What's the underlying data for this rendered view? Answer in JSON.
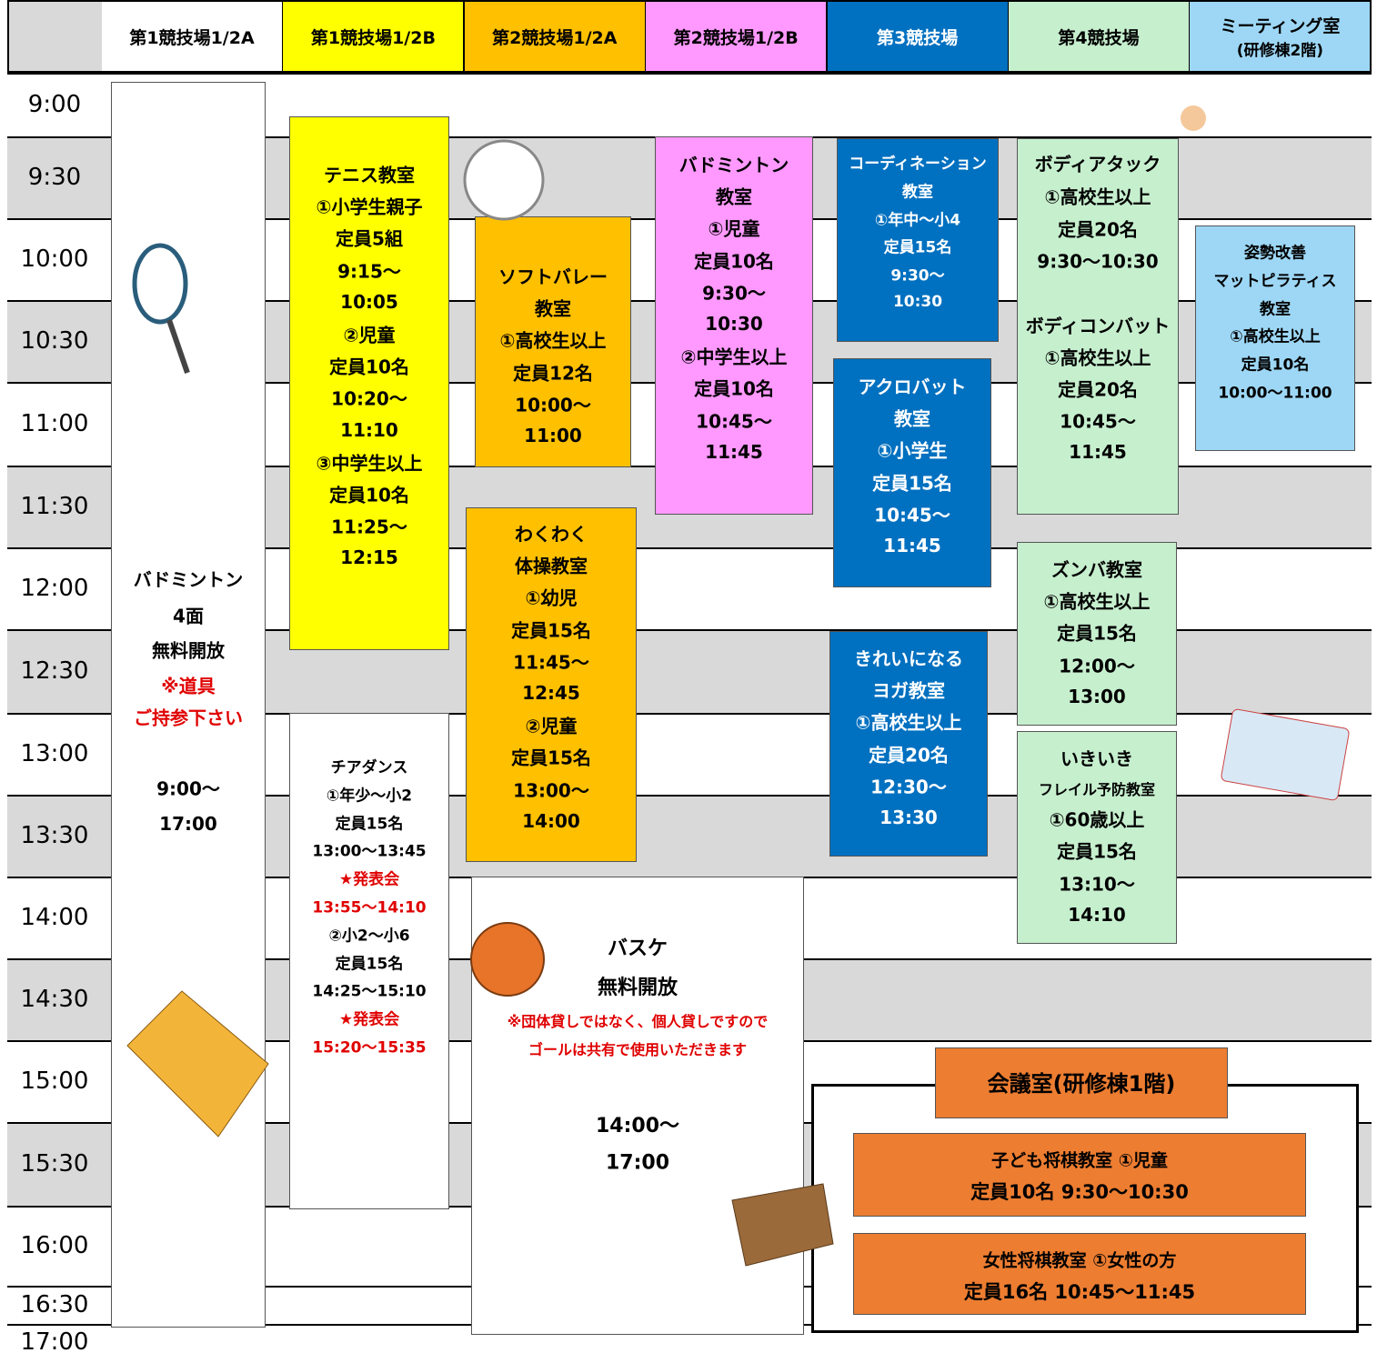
{
  "header": {
    "columns": [
      {
        "lines": [
          "第1競技場1/2A"
        ]
      },
      {
        "lines": [
          "第1競技場1/2B"
        ]
      },
      {
        "lines": [
          "第2競技場1/2A"
        ]
      },
      {
        "lines": [
          "第2競技場1/2B"
        ]
      },
      {
        "lines": [
          "第3競技場"
        ]
      },
      {
        "lines": [
          "第4競技場"
        ]
      },
      {
        "lines": [
          "ミーティング室",
          "(研修棟2階)"
        ]
      }
    ]
  },
  "times": [
    "9:00",
    "9:30",
    "10:00",
    "10:30",
    "11:00",
    "11:30",
    "12:00",
    "12:30",
    "13:00",
    "13:30",
    "14:00",
    "14:30",
    "15:00",
    "15:30",
    "16:00",
    "16:30",
    "17:00"
  ],
  "events": [
    {
      "lines": [
        "バドミントン",
        "4面",
        "無料開放",
        "※道具",
        "ご持参下さい",
        "9:00～",
        "17:00"
      ]
    },
    {
      "lines": [
        "テニス教室",
        "①小学生親子",
        "定員5組",
        "9:15～",
        "10:05",
        "②児童",
        "定員10名",
        "10:20～",
        "11:10",
        "③中学生以上",
        "定員10名",
        "11:25～",
        "12:15"
      ]
    },
    {
      "lines": [
        "チアダンス",
        "①年少～小2",
        "定員15名",
        "13:00～13:45",
        "★発表会",
        "13:55～14:10",
        "②小2～小6",
        "定員15名",
        "14:25～15:10",
        "★発表会",
        "15:20～15:35"
      ]
    },
    {
      "lines": [
        "ソフトバレー",
        "教室",
        "①高校生以上",
        "定員12名",
        "10:00～",
        "11:00"
      ]
    },
    {
      "lines": [
        "わくわく",
        "体操教室",
        "①幼児",
        "定員15名",
        "11:45～",
        "12:45",
        "②児童",
        "定員15名",
        "13:00～",
        "14:00"
      ]
    },
    {
      "lines": [
        "バスケ",
        "無料開放",
        "※団体貸しではなく、個人貸しですので",
        "ゴールは共有で使用いただきます",
        "14:00～",
        "17:00"
      ]
    },
    {
      "lines": [
        "バドミントン",
        "教室",
        "①児童",
        "定員10名",
        "9:30～",
        "10:30",
        "②中学生以上",
        "定員10名",
        "10:45～",
        "11:45"
      ]
    },
    {
      "lines": [
        "コーディネーション",
        "教室",
        "①年中～小4",
        "定員15名",
        "9:30～",
        "10:30"
      ]
    },
    {
      "lines": [
        "アクロバット",
        "教室",
        "①小学生",
        "定員15名",
        "10:45～",
        "11:45"
      ]
    },
    {
      "lines": [
        "きれいになる",
        "ヨガ教室",
        "①高校生以上",
        "定員20名",
        "12:30～",
        "13:30"
      ]
    },
    {
      "lines": [
        "ボディアタック",
        "①高校生以上",
        "定員20名",
        "9:30～10:30",
        "ボディコンバット",
        "①高校生以上",
        "定員20名",
        "10:45～",
        "11:45"
      ]
    },
    {
      "lines": [
        "ズンバ教室",
        "①高校生以上",
        "定員15名",
        "12:00～",
        "13:00"
      ]
    },
    {
      "lines": [
        "いきいき",
        "フレイル予防教室",
        "①60歳以上",
        "定員15名",
        "13:10～",
        "14:10"
      ]
    },
    {
      "lines": [
        "姿勢改善",
        "マットピラティス",
        "教室",
        "①高校生以上",
        "定員10名",
        "10:00～11:00"
      ]
    }
  ],
  "meeting_room": {
    "title": "会議室(研修棟1階)",
    "classes": [
      {
        "lines": [
          "子ども将棋教室 ①児童",
          "定員10名 9:30～10:30"
        ]
      },
      {
        "lines": [
          "女性将棋教室 ①女性の方",
          "定員16名 10:45～11:45"
        ]
      }
    ]
  }
}
